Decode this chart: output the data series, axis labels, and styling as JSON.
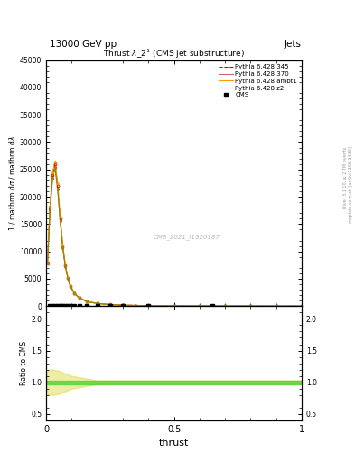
{
  "title": "13000 GeV pp",
  "title_right": "Jets",
  "plot_title": "Thrust $\\lambda$_2$^1$ (CMS jet substructure)",
  "xlabel": "thrust",
  "ylabel_main": "1 / mathrm d N / mathrm d p_T mathrm d lambda",
  "ylabel_ratio": "Ratio to CMS",
  "watermark": "CMS_2021_I1920187",
  "right_label": "Rivet 3.1.10, ≥ 2.7M events\nmcplots.cern.ch [arXiv:1306.3436]",
  "ylim_main": [
    0,
    45000
  ],
  "ylim_ratio": [
    0.4,
    2.2
  ],
  "xlim": [
    0.0,
    1.0
  ],
  "ytick_step": 5000,
  "yticks_ratio": [
    0.5,
    1.0,
    1.5,
    2.0
  ],
  "legend_entries": [
    "CMS",
    "Pythia 6.428 345",
    "Pythia 6.428 370",
    "Pythia 6.428 ambt1",
    "Pythia 6.428 z2"
  ],
  "color_345": "#cc0000",
  "color_370": "#cc6666",
  "color_ambt1": "#ff9900",
  "color_z2": "#888800",
  "bg_color": "#ffffff"
}
